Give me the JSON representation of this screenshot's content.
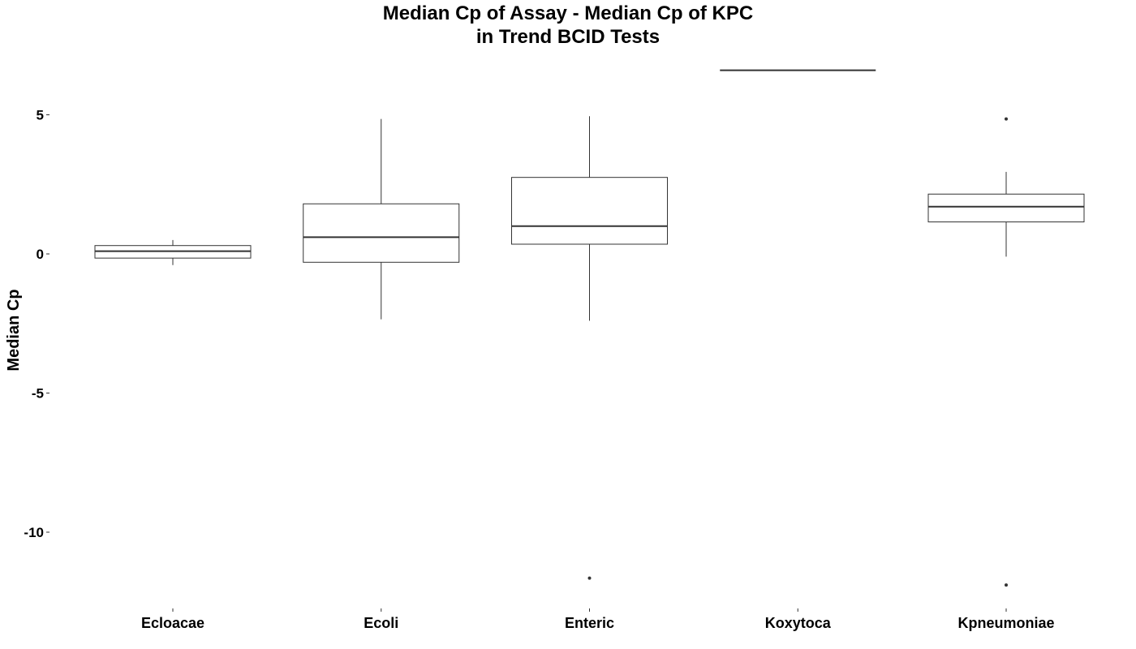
{
  "chart_data": {
    "type": "box",
    "title_lines": [
      "Median Cp of Assay - Median Cp of KPC",
      "in Trend BCID Tests"
    ],
    "xlabel": "",
    "ylabel": "Median Cp",
    "ylim": [
      -12.5,
      6.9
    ],
    "yticks": [
      5,
      0,
      -5,
      -10
    ],
    "ytick_labels": [
      "5",
      "0",
      "-5",
      "-10"
    ],
    "grid": false,
    "legend": "none",
    "categories": [
      "Ecloacae",
      "Ecoli",
      "Enteric",
      "Koxytoca",
      "Kpneumoniae"
    ],
    "boxes": [
      {
        "category": "Ecloacae",
        "whisker_low": -0.4,
        "q1": -0.15,
        "median": 0.1,
        "q3": 0.3,
        "whisker_high": 0.5,
        "outliers": []
      },
      {
        "category": "Ecoli",
        "whisker_low": -2.35,
        "q1": -0.3,
        "median": 0.6,
        "q3": 1.8,
        "whisker_high": 4.85,
        "outliers": []
      },
      {
        "category": "Enteric",
        "whisker_low": -2.4,
        "q1": 0.35,
        "median": 1.0,
        "q3": 2.75,
        "whisker_high": 4.95,
        "outliers": [
          -11.65
        ]
      },
      {
        "category": "Koxytoca",
        "whisker_low": 6.6,
        "q1": 6.6,
        "median": 6.6,
        "q3": 6.6,
        "whisker_high": 6.6,
        "outliers": []
      },
      {
        "category": "Kpneumoniae",
        "whisker_low": -0.1,
        "q1": 1.15,
        "median": 1.7,
        "q3": 2.15,
        "whisker_high": 2.95,
        "outliers": [
          4.85,
          -11.9
        ]
      }
    ]
  }
}
